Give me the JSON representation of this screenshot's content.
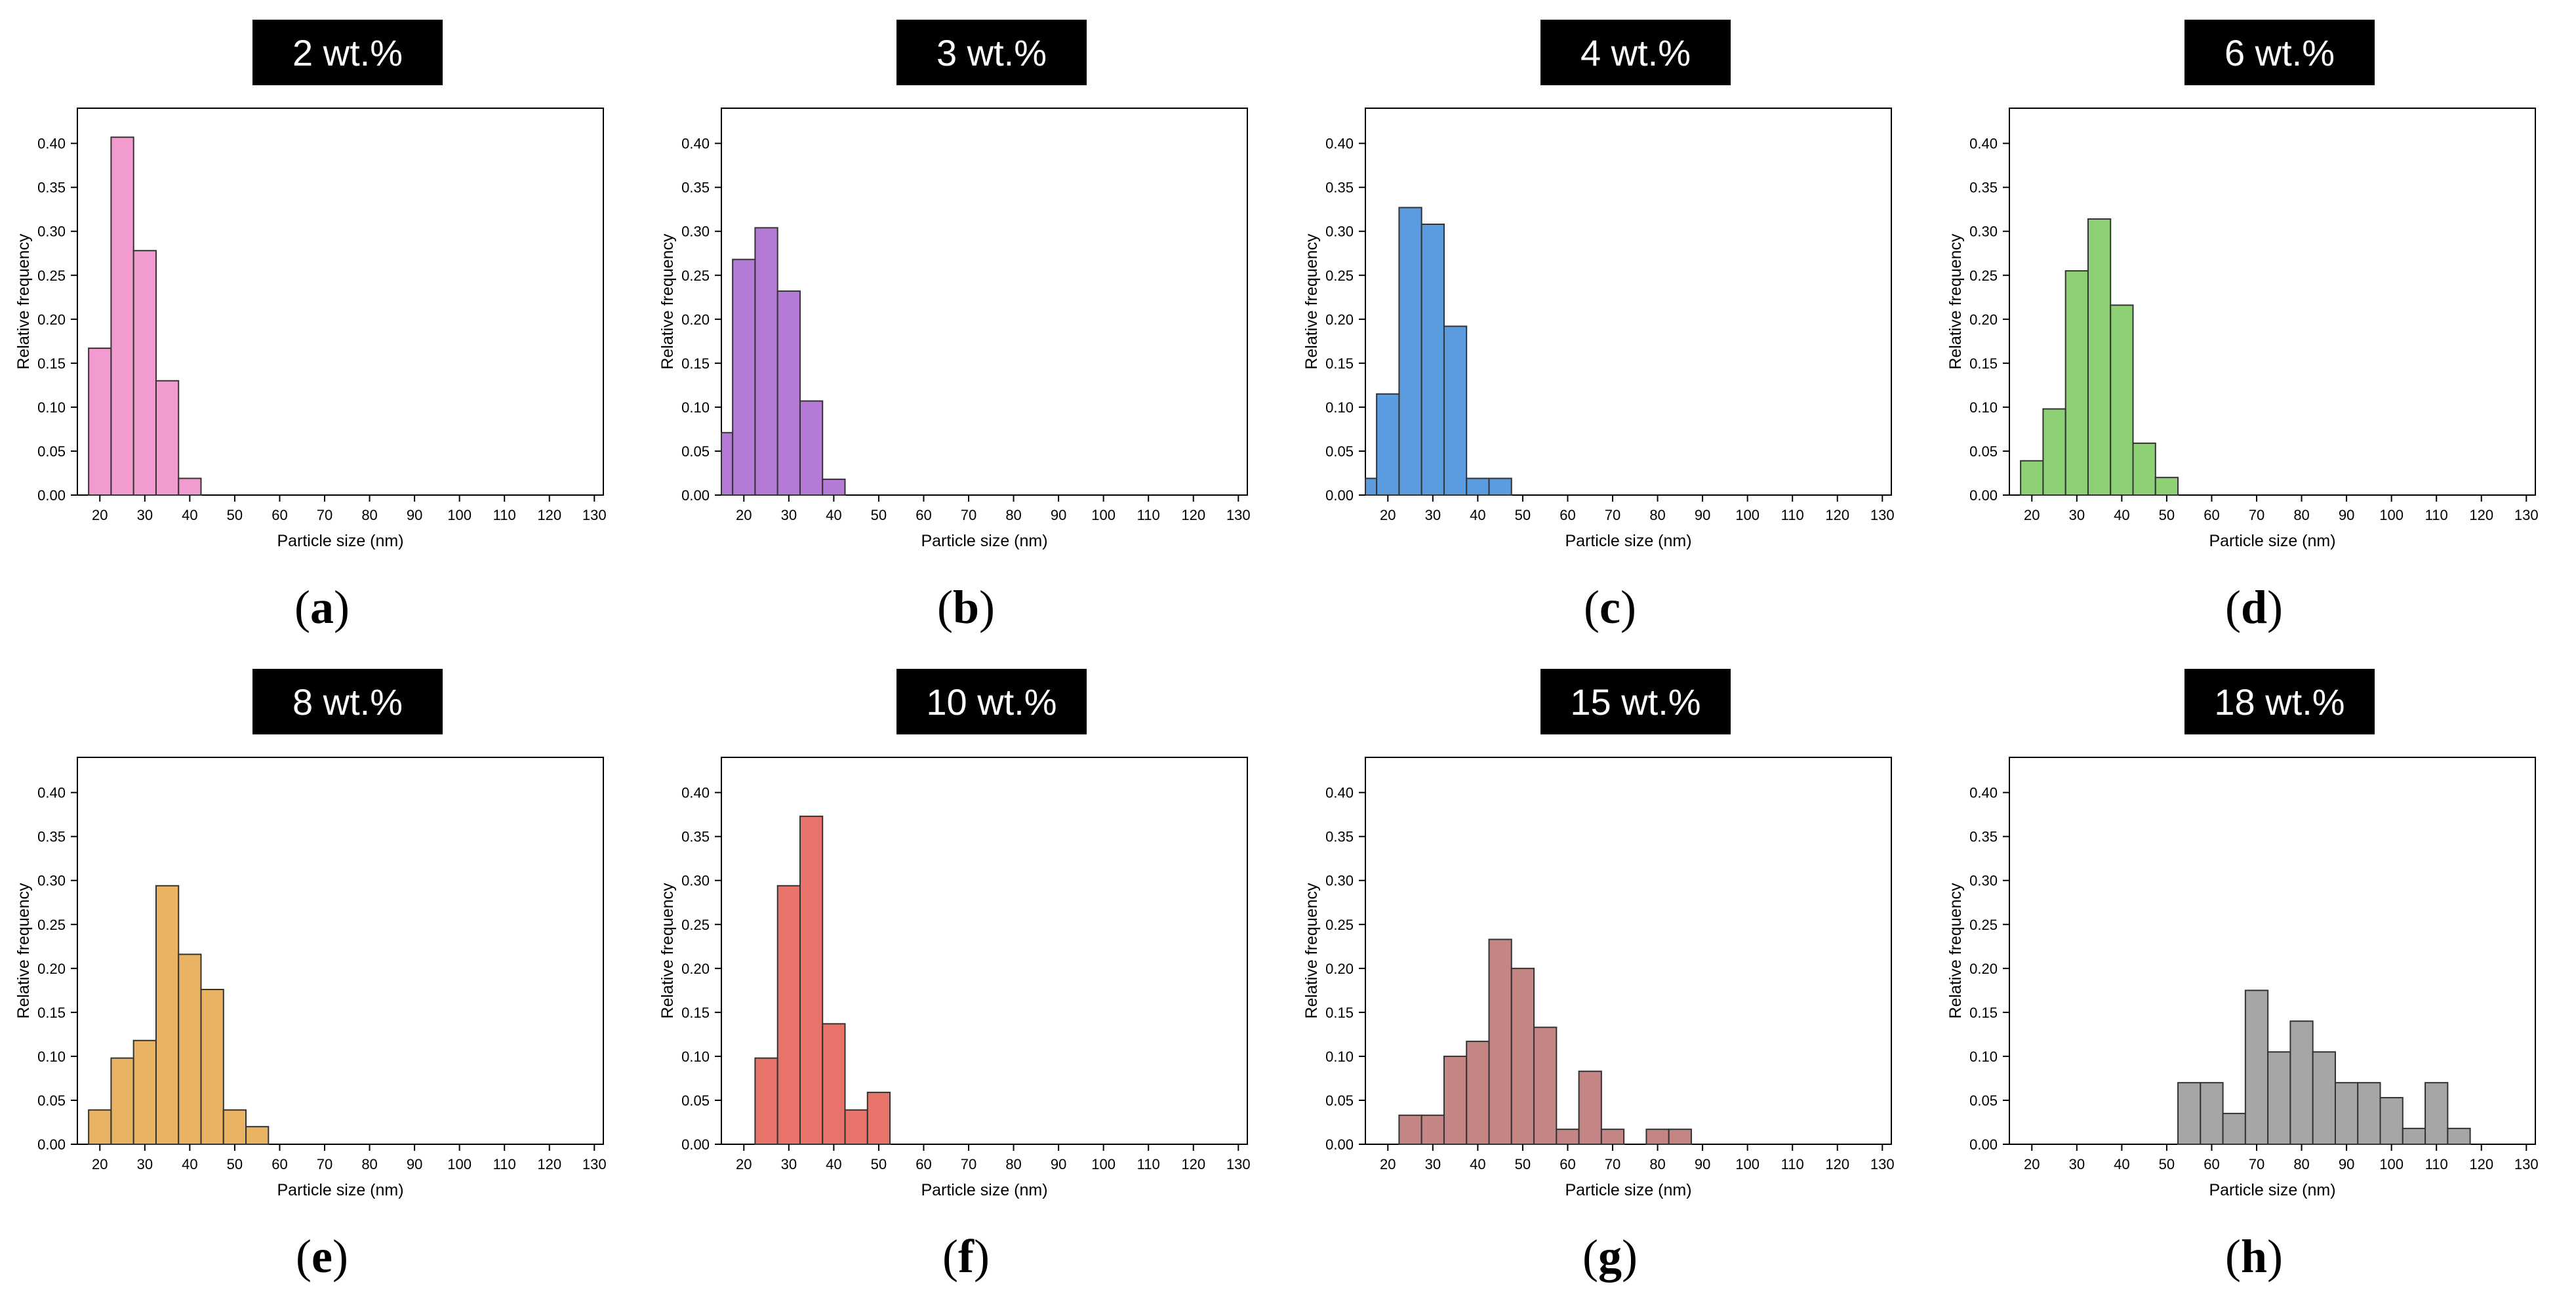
{
  "chart_data": [
    {
      "type": "bar",
      "panel": "a",
      "title": "2 wt.%",
      "color": "#f29bcf",
      "xlabel": "Particle size (nm)",
      "ylabel": "Relative frequency",
      "xlim": [
        15,
        132
      ],
      "ylim": [
        0,
        0.44
      ],
      "xticks": [
        "20",
        "30",
        "40",
        "50",
        "60",
        "70",
        "80",
        "90",
        "100",
        "110",
        "120",
        "130"
      ],
      "yticks": [
        "0.00",
        "0.05",
        "0.10",
        "0.15",
        "0.20",
        "0.25",
        "0.30",
        "0.35",
        "0.40"
      ],
      "x": [
        20,
        25,
        30,
        35,
        40
      ],
      "values": [
        0.167,
        0.407,
        0.278,
        0.13,
        0.019
      ]
    },
    {
      "type": "bar",
      "panel": "b",
      "title": "3 wt.%",
      "color": "#b57ad6",
      "xlabel": "Particle size (nm)",
      "ylabel": "Relative frequency",
      "xlim": [
        15,
        132
      ],
      "ylim": [
        0,
        0.44
      ],
      "xticks": [
        "20",
        "30",
        "40",
        "50",
        "60",
        "70",
        "80",
        "90",
        "100",
        "110",
        "120",
        "130"
      ],
      "yticks": [
        "0.00",
        "0.05",
        "0.10",
        "0.15",
        "0.20",
        "0.25",
        "0.30",
        "0.35",
        "0.40"
      ],
      "x": [
        15,
        20,
        25,
        30,
        35,
        40
      ],
      "values": [
        0.071,
        0.268,
        0.304,
        0.232,
        0.107,
        0.018
      ]
    },
    {
      "type": "bar",
      "panel": "c",
      "title": "4 wt.%",
      "color": "#5b9be0",
      "xlabel": "Particle size (nm)",
      "ylabel": "Relative frequency",
      "xlim": [
        15,
        132
      ],
      "ylim": [
        0,
        0.44
      ],
      "xticks": [
        "20",
        "30",
        "40",
        "50",
        "60",
        "70",
        "80",
        "90",
        "100",
        "110",
        "120",
        "130"
      ],
      "yticks": [
        "0.00",
        "0.05",
        "0.10",
        "0.15",
        "0.20",
        "0.25",
        "0.30",
        "0.35",
        "0.40"
      ],
      "x": [
        15,
        20,
        25,
        30,
        35,
        40,
        45
      ],
      "values": [
        0.019,
        0.115,
        0.327,
        0.308,
        0.192,
        0.019,
        0.019
      ]
    },
    {
      "type": "bar",
      "panel": "d",
      "title": "6 wt.%",
      "color": "#8dd174",
      "xlabel": "Particle size (nm)",
      "ylabel": "Relative frequency",
      "xlim": [
        15,
        132
      ],
      "ylim": [
        0,
        0.44
      ],
      "xticks": [
        "20",
        "30",
        "40",
        "50",
        "60",
        "70",
        "80",
        "90",
        "100",
        "110",
        "120",
        "130"
      ],
      "yticks": [
        "0.00",
        "0.05",
        "0.10",
        "0.15",
        "0.20",
        "0.25",
        "0.30",
        "0.35",
        "0.40"
      ],
      "x": [
        20,
        25,
        30,
        35,
        40,
        45,
        50
      ],
      "values": [
        0.039,
        0.098,
        0.255,
        0.314,
        0.216,
        0.059,
        0.02
      ]
    },
    {
      "type": "bar",
      "panel": "e",
      "title": "8 wt.%",
      "color": "#e8b363",
      "xlabel": "Particle size (nm)",
      "ylabel": "Relative frequency",
      "xlim": [
        15,
        132
      ],
      "ylim": [
        0,
        0.44
      ],
      "xticks": [
        "20",
        "30",
        "40",
        "50",
        "60",
        "70",
        "80",
        "90",
        "100",
        "110",
        "120",
        "130"
      ],
      "yticks": [
        "0.00",
        "0.05",
        "0.10",
        "0.15",
        "0.20",
        "0.25",
        "0.30",
        "0.35",
        "0.40"
      ],
      "x": [
        20,
        25,
        30,
        35,
        40,
        45,
        50,
        55
      ],
      "values": [
        0.039,
        0.098,
        0.118,
        0.294,
        0.216,
        0.176,
        0.039,
        0.02
      ]
    },
    {
      "type": "bar",
      "panel": "f",
      "title": "10 wt.%",
      "color": "#e8736a",
      "xlabel": "Particle size (nm)",
      "ylabel": "Relative frequency",
      "xlim": [
        15,
        132
      ],
      "ylim": [
        0,
        0.44
      ],
      "xticks": [
        "20",
        "30",
        "40",
        "50",
        "60",
        "70",
        "80",
        "90",
        "100",
        "110",
        "120",
        "130"
      ],
      "yticks": [
        "0.00",
        "0.05",
        "0.10",
        "0.15",
        "0.20",
        "0.25",
        "0.30",
        "0.35",
        "0.40"
      ],
      "x": [
        25,
        30,
        35,
        40,
        45,
        50
      ],
      "values": [
        0.098,
        0.294,
        0.373,
        0.137,
        0.039,
        0.059
      ]
    },
    {
      "type": "bar",
      "panel": "g",
      "title": "15 wt.%",
      "color": "#c48585",
      "xlabel": "Particle size (nm)",
      "ylabel": "Relative frequency",
      "xlim": [
        15,
        132
      ],
      "ylim": [
        0,
        0.44
      ],
      "xticks": [
        "20",
        "30",
        "40",
        "50",
        "60",
        "70",
        "80",
        "90",
        "100",
        "110",
        "120",
        "130"
      ],
      "yticks": [
        "0.00",
        "0.05",
        "0.10",
        "0.15",
        "0.20",
        "0.25",
        "0.30",
        "0.35",
        "0.40"
      ],
      "x": [
        25,
        30,
        35,
        40,
        45,
        50,
        55,
        60,
        65,
        70,
        80,
        85
      ],
      "values": [
        0.033,
        0.033,
        0.1,
        0.117,
        0.233,
        0.2,
        0.133,
        0.017,
        0.083,
        0.017,
        0.017,
        0.017
      ]
    },
    {
      "type": "bar",
      "panel": "h",
      "title": "18 wt.%",
      "color": "#a6a6a6",
      "xlabel": "Particle size (nm)",
      "ylabel": "Relative frequency",
      "xlim": [
        15,
        132
      ],
      "ylim": [
        0,
        0.44
      ],
      "xticks": [
        "20",
        "30",
        "40",
        "50",
        "60",
        "70",
        "80",
        "90",
        "100",
        "110",
        "120",
        "130"
      ],
      "yticks": [
        "0.00",
        "0.05",
        "0.10",
        "0.15",
        "0.20",
        "0.25",
        "0.30",
        "0.35",
        "0.40"
      ],
      "x": [
        55,
        60,
        65,
        70,
        75,
        80,
        85,
        90,
        95,
        100,
        105,
        110,
        115
      ],
      "values": [
        0.07,
        0.07,
        0.035,
        0.175,
        0.105,
        0.14,
        0.105,
        0.07,
        0.07,
        0.053,
        0.018,
        0.07,
        0.018
      ]
    }
  ]
}
